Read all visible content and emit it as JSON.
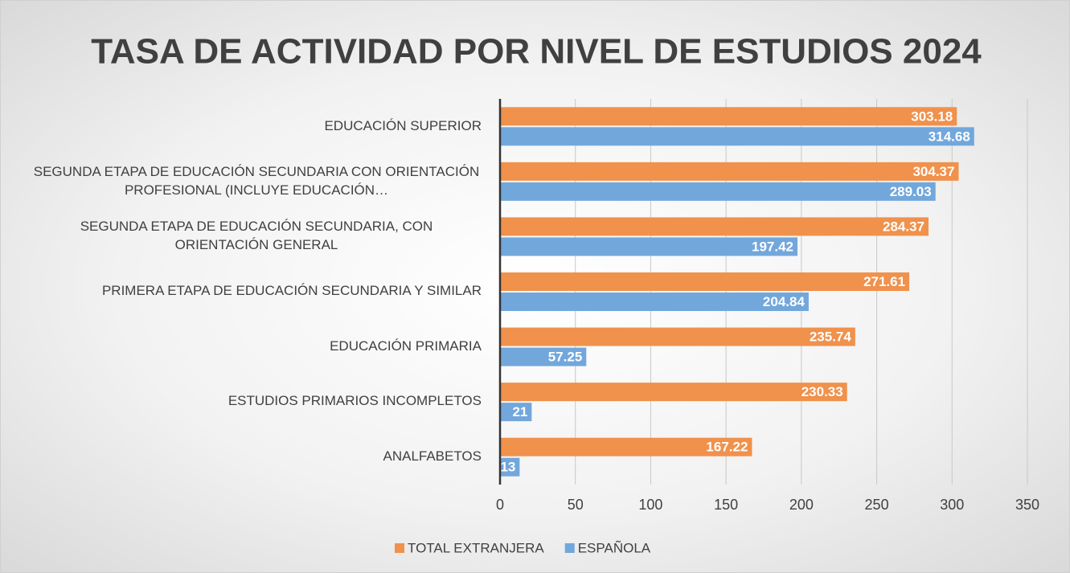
{
  "chart_data": {
    "type": "bar",
    "orientation": "horizontal",
    "title": "TASA DE ACTIVIDAD POR NIVEL DE ESTUDIOS 2024",
    "categories": [
      "EDUCACIÓN SUPERIOR",
      "SEGUNDA ETAPA DE EDUCACIÓN SECUNDARIA CON ORIENTACIÓN PROFESIONAL (INCLUYE EDUCACIÓN…",
      "SEGUNDA ETAPA DE EDUCACIÓN SECUNDARIA, CON ORIENTACIÓN GENERAL",
      "PRIMERA ETAPA DE EDUCACIÓN SECUNDARIA Y SIMILAR",
      "EDUCACIÓN PRIMARIA",
      "ESTUDIOS PRIMARIOS INCOMPLETOS",
      "ANALFABETOS"
    ],
    "series": [
      {
        "name": "TOTAL EXTRANJERA",
        "color": "#f0914c",
        "values": [
          303.18,
          304.37,
          284.37,
          271.61,
          235.74,
          230.33,
          167.22
        ]
      },
      {
        "name": "ESPAÑOLA",
        "color": "#72a7dc",
        "values": [
          314.68,
          289.03,
          197.42,
          204.84,
          57.25,
          21,
          13
        ]
      }
    ],
    "xlim": [
      0,
      350
    ],
    "xticks": [
      0,
      50,
      100,
      150,
      200,
      250,
      300,
      350
    ],
    "grid": true,
    "legend": "bottom"
  }
}
